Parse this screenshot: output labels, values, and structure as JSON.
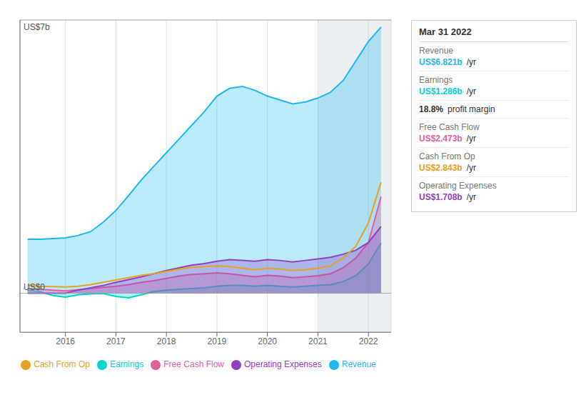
{
  "chart_data": {
    "type": "area",
    "x": [
      2015.25,
      2015.5,
      2015.75,
      2016.0,
      2016.25,
      2016.5,
      2016.75,
      2017.0,
      2017.25,
      2017.5,
      2017.75,
      2018.0,
      2018.25,
      2018.5,
      2018.75,
      2019.0,
      2019.25,
      2019.5,
      2019.75,
      2020.0,
      2020.25,
      2020.5,
      2020.75,
      2021.0,
      2021.25,
      2021.5,
      2021.75,
      2022.0,
      2022.25
    ],
    "series": [
      {
        "name": "Revenue",
        "color": "#1eb8f0",
        "type": "area",
        "values": [
          1.38,
          1.38,
          1.4,
          1.42,
          1.48,
          1.58,
          1.82,
          2.12,
          2.5,
          2.9,
          3.25,
          3.6,
          3.95,
          4.3,
          4.65,
          5.05,
          5.25,
          5.3,
          5.2,
          5.05,
          4.95,
          4.85,
          4.9,
          5.0,
          5.15,
          5.45,
          5.95,
          6.45,
          6.82
        ]
      },
      {
        "name": "Earnings",
        "color": "#00d4cc",
        "type": "area",
        "values": [
          0.08,
          0.04,
          -0.06,
          -0.1,
          -0.04,
          -0.02,
          -0.01,
          -0.08,
          -0.12,
          -0.04,
          0.04,
          0.08,
          0.1,
          0.12,
          0.14,
          0.18,
          0.2,
          0.2,
          0.18,
          0.2,
          0.18,
          0.16,
          0.18,
          0.2,
          0.22,
          0.3,
          0.45,
          0.75,
          1.286
        ]
      },
      {
        "name": "Free Cash Flow",
        "color": "#e060a0",
        "type": "area",
        "values": [
          0.12,
          0.1,
          0.08,
          0.06,
          0.09,
          0.12,
          0.15,
          0.18,
          0.22,
          0.28,
          0.32,
          0.38,
          0.44,
          0.48,
          0.5,
          0.52,
          0.5,
          0.46,
          0.42,
          0.46,
          0.44,
          0.4,
          0.42,
          0.45,
          0.5,
          0.65,
          0.9,
          1.3,
          2.473
        ]
      },
      {
        "name": "Cash From Op",
        "color": "#e8a020",
        "type": "line",
        "values": [
          0.2,
          0.18,
          0.17,
          0.16,
          0.18,
          0.22,
          0.28,
          0.34,
          0.4,
          0.46,
          0.5,
          0.56,
          0.62,
          0.66,
          0.68,
          0.7,
          0.68,
          0.64,
          0.6,
          0.64,
          0.62,
          0.58,
          0.6,
          0.64,
          0.7,
          0.9,
          1.2,
          1.8,
          2.843
        ]
      },
      {
        "name": "Operating Expenses",
        "color": "#9040c0",
        "type": "area",
        "values": [
          0.0,
          0.0,
          0.0,
          0.0,
          0.08,
          0.14,
          0.2,
          0.28,
          0.35,
          0.42,
          0.5,
          0.58,
          0.65,
          0.72,
          0.76,
          0.82,
          0.86,
          0.84,
          0.82,
          0.86,
          0.84,
          0.8,
          0.84,
          0.88,
          0.92,
          1.0,
          1.1,
          1.3,
          1.708
        ]
      }
    ],
    "xlim": [
      2015.1,
      2022.45
    ],
    "xticks": [
      2016,
      2017,
      2018,
      2019,
      2020,
      2021,
      2022
    ],
    "ylim": [
      -1,
      7
    ],
    "yticks": [
      -1,
      0,
      1,
      2,
      3,
      4,
      5,
      6,
      7
    ],
    "tick_labels": "x",
    "grid": true,
    "legend": "bottom",
    "shaded_region": [
      2021.0,
      2022.45
    ],
    "annotations": [
      {
        "text": "US$7b",
        "y": 7
      },
      {
        "text": "US$0",
        "y": 0
      }
    ],
    "info_box": {
      "title": "Mar 31 2022",
      "rows": [
        {
          "label": "Revenue",
          "value": "US$6.821b",
          "suffix": "/yr"
        },
        {
          "label": "Earnings",
          "value": "US$1.286b",
          "suffix": "/yr"
        },
        {
          "label": "",
          "value": "18.8%",
          "suffix": "profit margin"
        },
        {
          "label": "Free Cash Flow",
          "value": "US$2.473b",
          "suffix": "/yr"
        },
        {
          "label": "Cash From Op",
          "value": "US$2.843b",
          "suffix": "/yr"
        },
        {
          "label": "Operating Expenses",
          "value": "US$1.708b",
          "suffix": "/yr"
        }
      ]
    }
  }
}
